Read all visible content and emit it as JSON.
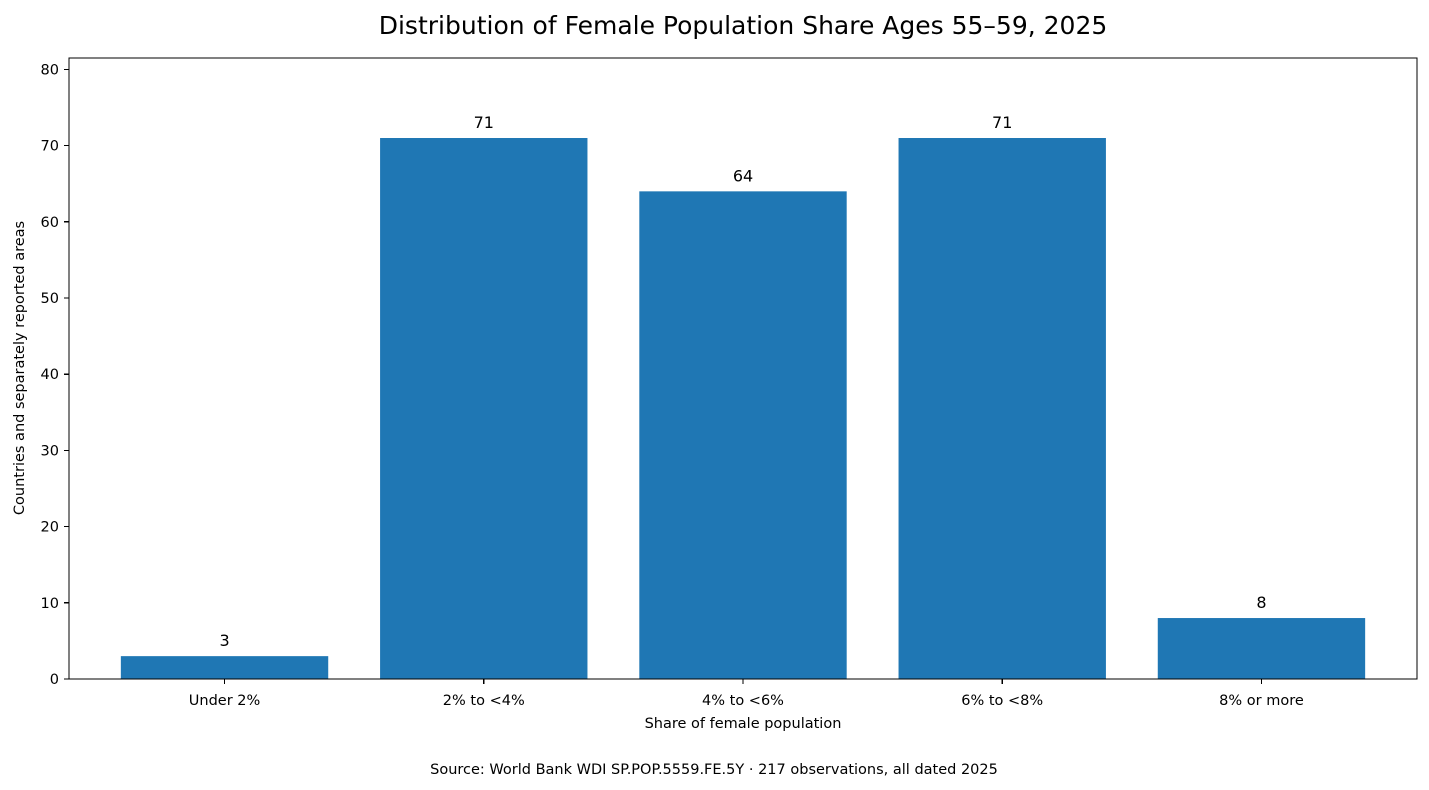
{
  "chart_data": {
    "type": "bar",
    "title": "Distribution of Female Population Share Ages 55–59, 2025",
    "xlabel": "Share of female population",
    "ylabel": "Countries and separately reported areas",
    "categories": [
      "Under 2%",
      "2% to <4%",
      "4% to <6%",
      "6% to <8%",
      "8% or more"
    ],
    "values": [
      3,
      71,
      64,
      71,
      8
    ],
    "ylim": [
      0,
      81.5
    ],
    "yticks": [
      0,
      10,
      20,
      30,
      40,
      50,
      60,
      70,
      80
    ],
    "bar_color": "#1f77b4",
    "grid": false,
    "legend": "none",
    "source": "Source: World Bank WDI SP.POP.5559.FE.5Y · 217 observations, all dated 2025"
  }
}
